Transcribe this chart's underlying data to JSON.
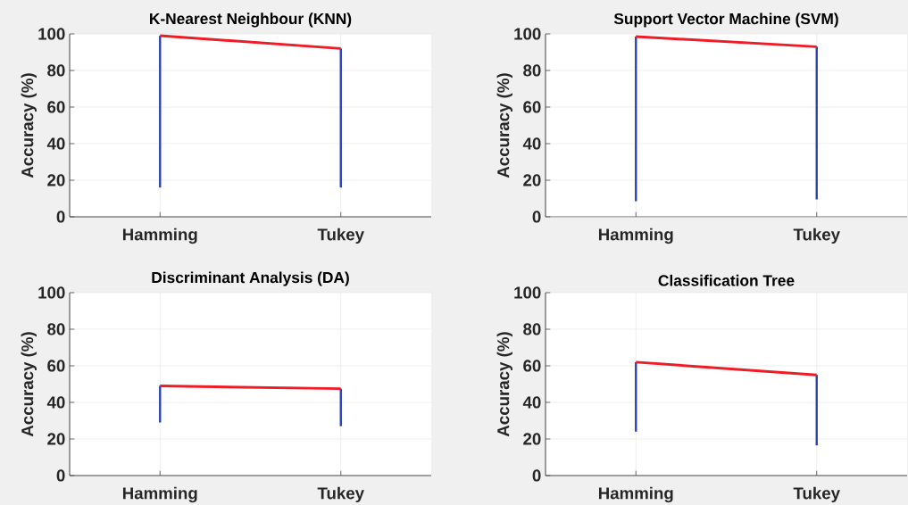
{
  "chart_data": [
    {
      "type": "bar",
      "title": "K-Nearest Neighbour (KNN)",
      "ylabel": "Accuracy (%)",
      "categories": [
        "Hamming",
        "Tukey"
      ],
      "ylim": [
        0,
        100
      ],
      "yticks": [
        0,
        20,
        40,
        60,
        80,
        100
      ],
      "grid": true,
      "series": [
        {
          "color": "#2f45ae",
          "base": [
            16,
            16
          ],
          "values": [
            83,
            76
          ]
        },
        {
          "type": "line",
          "color": "#ee1c25",
          "values": [
            99,
            92
          ]
        }
      ]
    },
    {
      "type": "bar",
      "title": "Support Vector Machine (SVM)",
      "ylabel": "Accuracy (%)",
      "categories": [
        "Hamming",
        "Tukey"
      ],
      "ylim": [
        0,
        100
      ],
      "yticks": [
        0,
        20,
        40,
        60,
        80,
        100
      ],
      "grid": true,
      "series": [
        {
          "color": "#2f45ae",
          "base": [
            8.5,
            9.5
          ],
          "values": [
            90,
            83.5
          ]
        },
        {
          "type": "line",
          "color": "#ee1c25",
          "values": [
            98.5,
            93
          ]
        }
      ]
    },
    {
      "type": "bar",
      "title": "Discriminant Analysis (DA)",
      "ylabel": "Accuracy (%)",
      "categories": [
        "Hamming",
        "Tukey"
      ],
      "ylim": [
        0,
        100
      ],
      "yticks": [
        0,
        20,
        40,
        60,
        80,
        100
      ],
      "grid": true,
      "series": [
        {
          "color": "#2f45ae",
          "base": [
            29,
            27
          ],
          "values": [
            20,
            20.5
          ]
        },
        {
          "type": "line",
          "color": "#ee1c25",
          "values": [
            49,
            47.5
          ]
        }
      ]
    },
    {
      "type": "bar",
      "title": "Classification Tree",
      "ylabel": "Accuracy (%)",
      "categories": [
        "Hamming",
        "Tukey"
      ],
      "ylim": [
        0,
        100
      ],
      "yticks": [
        0,
        20,
        40,
        60,
        80,
        100
      ],
      "grid": true,
      "series": [
        {
          "color": "#2f45ae",
          "base": [
            24,
            16.5
          ],
          "values": [
            38,
            38.5
          ]
        },
        {
          "type": "line",
          "color": "#ee1c25",
          "values": [
            62,
            55
          ]
        }
      ]
    }
  ]
}
